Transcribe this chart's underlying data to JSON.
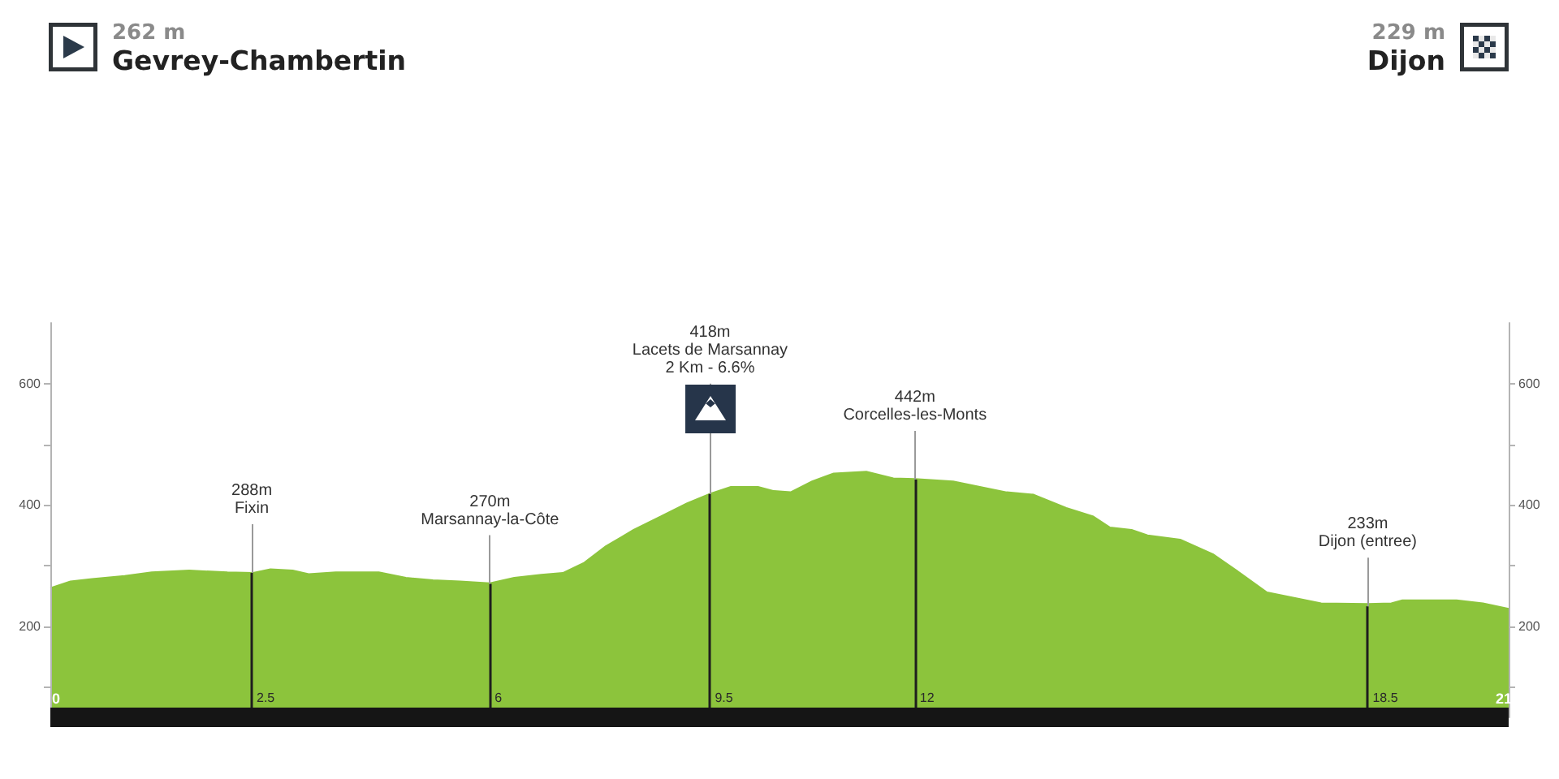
{
  "chart_data": {
    "type": "area",
    "color": "#8cc43c",
    "x": [
      0,
      0.29,
      0.6,
      1.07,
      1.46,
      2.0,
      2.55,
      2.92,
      3.17,
      3.49,
      3.72,
      4.11,
      4.73,
      5.12,
      5.51,
      5.9,
      6.33,
      6.68,
      7.07,
      7.38,
      7.69,
      8.0,
      8.4,
      8.79,
      9.17,
      9.51,
      9.8,
      10.19,
      10.42,
      10.66,
      10.97,
      11.28,
      11.75,
      12.14,
      12.45,
      13.0,
      13.77,
      14.16,
      14.63,
      15.02,
      15.26,
      15.57,
      15.8,
      16.27,
      16.74,
      17.13,
      17.52,
      17.91,
      18.3,
      18.97,
      19.31,
      19.47,
      20.25,
      20.63,
      21
    ],
    "values": [
      263,
      274,
      278,
      283,
      289,
      292,
      289,
      288,
      294,
      292,
      286,
      289,
      289,
      280,
      276,
      274,
      271,
      280,
      285,
      288,
      305,
      332,
      359,
      381,
      403,
      419,
      430,
      430,
      423,
      421,
      439,
      452,
      455,
      444,
      443,
      439,
      421,
      417,
      395,
      381,
      363,
      359,
      350,
      343,
      319,
      288,
      256,
      247,
      238,
      237,
      238,
      243,
      243,
      238,
      229
    ],
    "xlim": [
      0,
      21
    ],
    "xticks": [
      0,
      21
    ],
    "ylim": [
      50,
      700
    ],
    "yticks": [
      {
        "value": 100,
        "label": null
      },
      200,
      {
        "value": 300,
        "label": null
      },
      400,
      {
        "value": 500,
        "label": null
      },
      600
    ],
    "y2lim": [
      50,
      700
    ],
    "y2ticks": [
      {
        "value": 100,
        "label": null
      },
      200,
      {
        "value": 300,
        "label": null
      },
      400,
      {
        "value": 500,
        "label": null
      },
      600
    ],
    "annotations": [
      "262 m",
      "Gevrey-Chambertin",
      "229 m",
      "Dijon",
      {
        "text": "288m\nFixin",
        "x": 2.9,
        "y": 288
      },
      {
        "text": "270m\nMarsannay-la-Côte",
        "x": 6.33,
        "y": 270
      },
      {
        "text": "418m\nLacets de Marsannay\n2 Km - 6.6%",
        "x": 9.5,
        "y": 418
      },
      {
        "text": "442m\nCorcelles-les-Monts",
        "x": 12.45,
        "y": 442
      },
      {
        "text": "233m\nDijon (entree)",
        "x": 18.97,
        "y": 233
      },
      {
        "text": "2.5",
        "x": 2.9,
        "y": 288
      },
      {
        "text": "6",
        "x": 6.33,
        "y": 270
      },
      {
        "text": "9.5",
        "x": 9.5,
        "y": 418
      },
      {
        "text": "12",
        "x": 12.45,
        "y": 442
      },
      {
        "text": "18.5",
        "x": 18.97,
        "y": 233
      }
    ]
  }
}
